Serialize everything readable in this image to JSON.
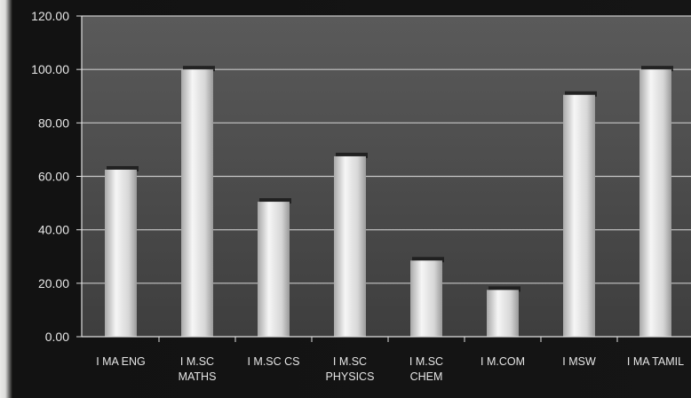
{
  "chart_data": {
    "type": "bar",
    "categories": [
      [
        "I MA ENG"
      ],
      [
        "I M.SC",
        "MATHS"
      ],
      [
        "I M.SC CS"
      ],
      [
        "I M.SC",
        "PHYSICS"
      ],
      [
        "I M.SC",
        "CHEM"
      ],
      [
        "I M.COM"
      ],
      [
        "I MSW"
      ],
      [
        "I MA TAMIL"
      ]
    ],
    "values": [
      62.5,
      100,
      50.5,
      67.5,
      28.5,
      17.5,
      90.5,
      100
    ],
    "ylim": [
      0,
      120
    ],
    "yticks": [
      "0.00",
      "20.00",
      "40.00",
      "60.00",
      "80.00",
      "100.00",
      "120.00"
    ],
    "grid": true,
    "colors": {
      "plot_area": "#4a4a4a",
      "bar_light": "#f4f4f4",
      "bar_mid": "#cfcfcf",
      "bar_dark": "#9a9a9a",
      "gridline": "#c8c8c8",
      "axis": "#e0e0e0"
    }
  }
}
